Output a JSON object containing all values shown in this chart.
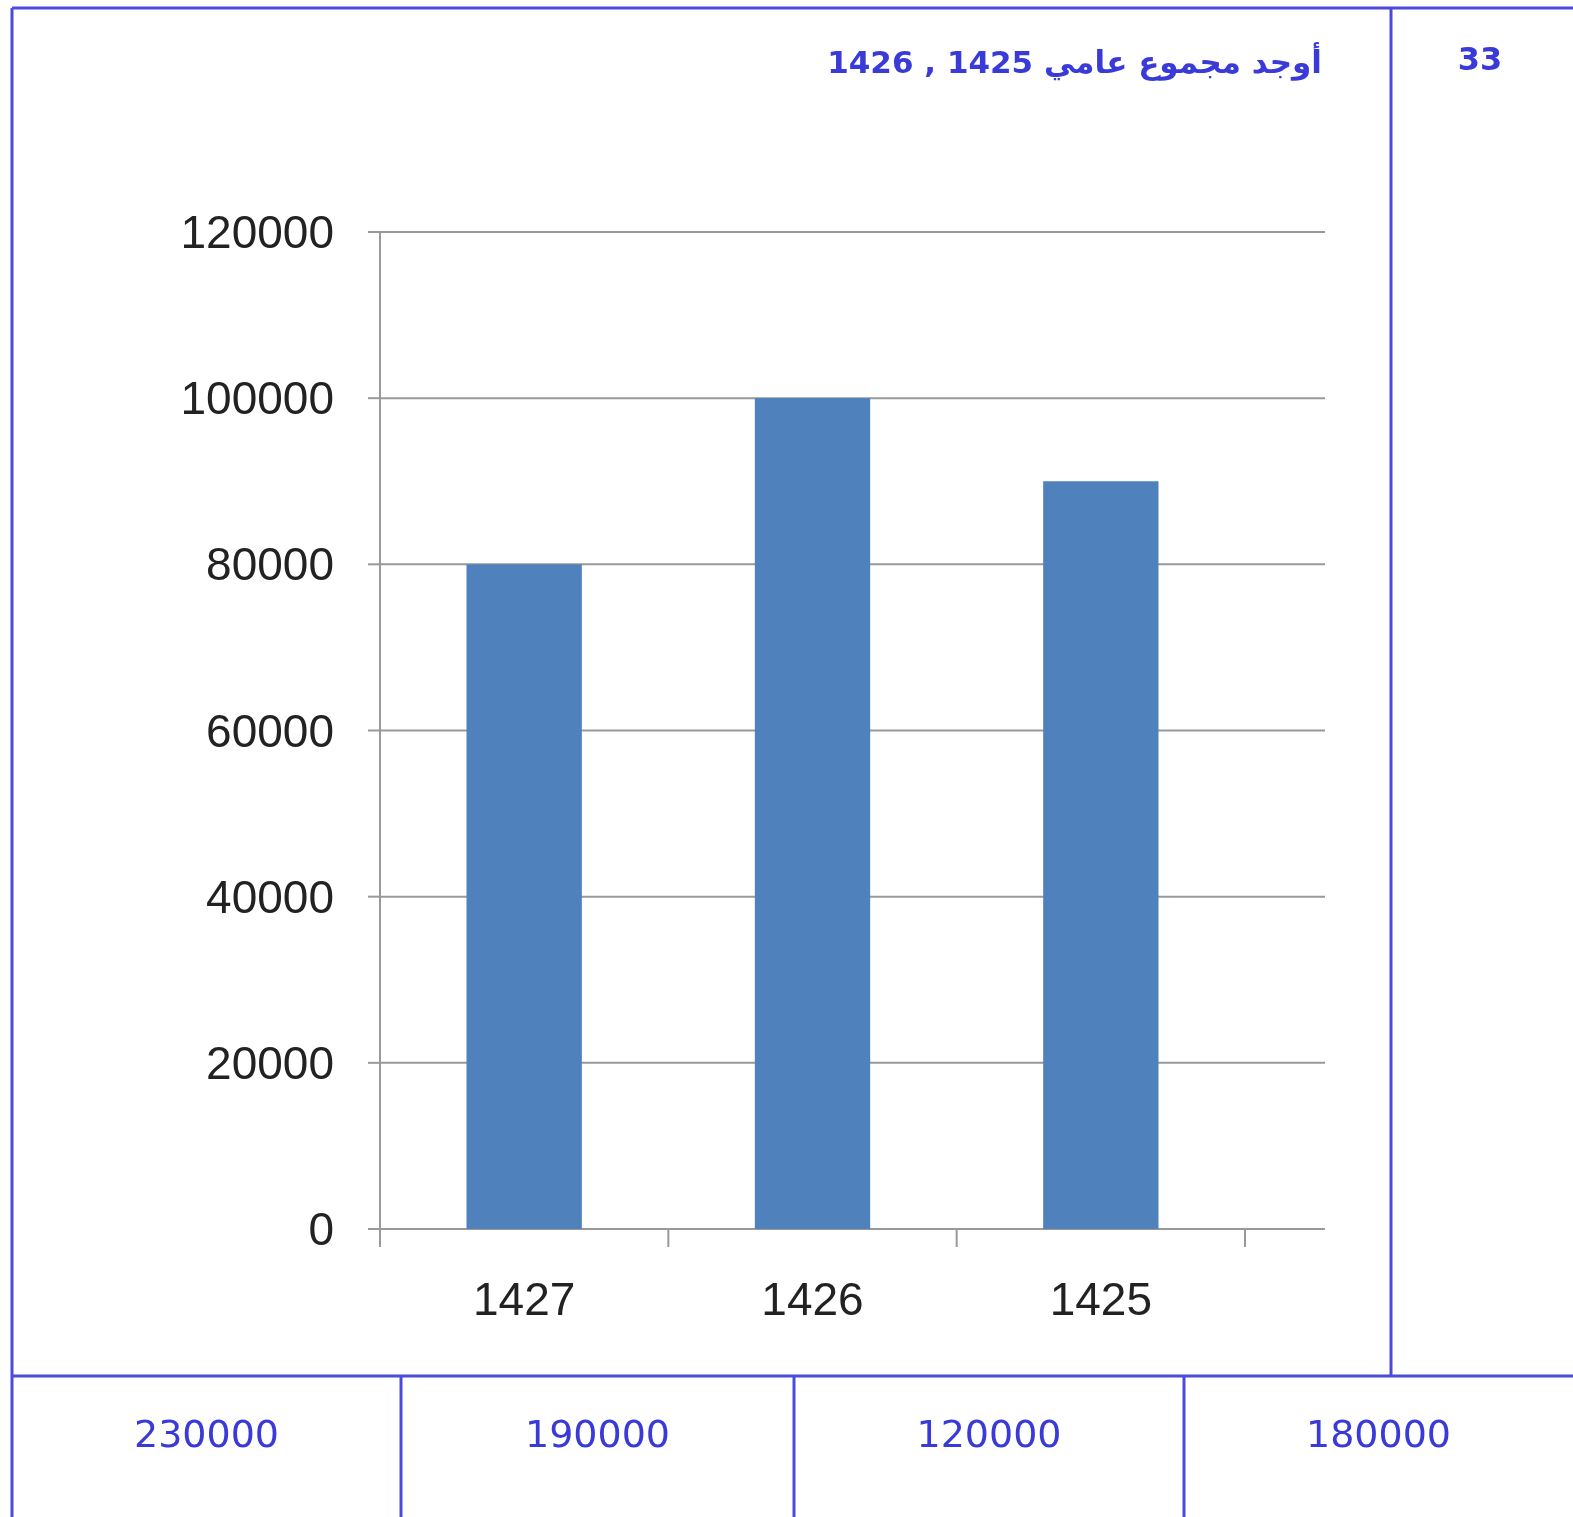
{
  "chart_data": {
    "type": "bar",
    "title": "أوجد مجموع عامي 1425 , 1426",
    "categories": [
      "1427",
      "1426",
      "1425"
    ],
    "values": [
      80000,
      100000,
      90000
    ],
    "color": "#4f81bd",
    "ylim": [
      0,
      120000
    ],
    "yticks": [
      0,
      20000,
      40000,
      60000,
      80000,
      100000,
      120000
    ],
    "grid": "y",
    "annotations": [
      "33",
      "230000",
      "190000",
      "120000",
      "180000"
    ]
  }
}
